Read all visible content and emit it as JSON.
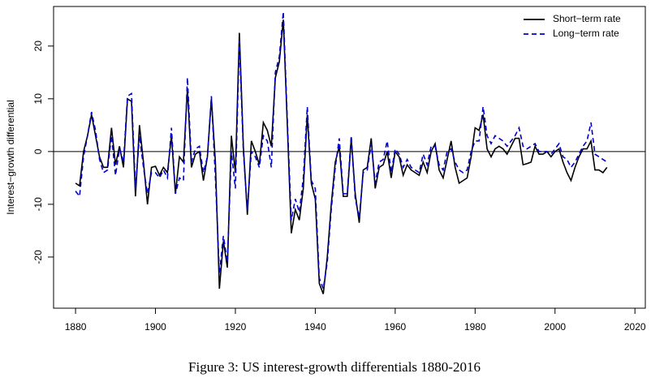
{
  "chart_data": {
    "type": "line",
    "caption": "Figure 3: US interest-growth differentials 1880-2016",
    "y_label": "Interest−growth differential",
    "x": [
      1880,
      1881,
      1882,
      1883,
      1884,
      1885,
      1886,
      1887,
      1888,
      1889,
      1890,
      1891,
      1892,
      1893,
      1894,
      1895,
      1896,
      1897,
      1898,
      1899,
      1900,
      1901,
      1902,
      1903,
      1904,
      1905,
      1906,
      1907,
      1908,
      1909,
      1910,
      1911,
      1912,
      1913,
      1914,
      1915,
      1916,
      1917,
      1918,
      1919,
      1920,
      1921,
      1922,
      1923,
      1924,
      1925,
      1926,
      1927,
      1928,
      1929,
      1930,
      1931,
      1932,
      1933,
      1934,
      1935,
      1936,
      1937,
      1938,
      1939,
      1940,
      1941,
      1942,
      1943,
      1944,
      1945,
      1946,
      1947,
      1948,
      1949,
      1950,
      1951,
      1952,
      1953,
      1954,
      1955,
      1956,
      1957,
      1958,
      1959,
      1960,
      1961,
      1962,
      1963,
      1964,
      1965,
      1966,
      1967,
      1968,
      1969,
      1970,
      1971,
      1972,
      1973,
      1974,
      1975,
      1976,
      1977,
      1978,
      1979,
      1980,
      1981,
      1982,
      1983,
      1984,
      1985,
      1986,
      1987,
      1988,
      1989,
      1990,
      1991,
      1992,
      1993,
      1994,
      1995,
      1996,
      1997,
      1998,
      1999,
      2000,
      2001,
      2002,
      2003,
      2004,
      2005,
      2006,
      2007,
      2008,
      2009,
      2010,
      2011,
      2012,
      2013
    ],
    "series": [
      {
        "name": "Short−term rate",
        "color": "#000000",
        "dash": "solid",
        "values": [
          -6,
          -6.5,
          0,
          3,
          7,
          3,
          -1,
          -3,
          -3,
          4.5,
          -2.5,
          1,
          -3,
          10,
          9.5,
          -8.5,
          5,
          -2,
          -10,
          -3,
          -2.8,
          -4.5,
          -3,
          -4,
          3,
          -8,
          -1,
          -2,
          12,
          -3,
          -0.5,
          0,
          -5.5,
          -1,
          10,
          -2,
          -26,
          -17,
          -22,
          3,
          -4,
          22.5,
          1,
          -12,
          2,
          0,
          -2.5,
          5.5,
          4,
          1,
          14,
          17,
          25,
          5,
          -15.5,
          -11,
          -13,
          -7,
          7,
          -6,
          -9,
          -25,
          -27,
          -20,
          -10,
          -2,
          1,
          -8.5,
          -8.5,
          2.5,
          -8,
          -13.5,
          -3.5,
          -3,
          2.5,
          -7,
          -3,
          -2.5,
          0,
          -5,
          0,
          -1,
          -4.5,
          -2.5,
          -3.5,
          -4,
          -4.5,
          -2,
          -4,
          0,
          1.5,
          -3.5,
          -5,
          -1.5,
          2,
          -3,
          -6,
          -5.5,
          -5,
          -1,
          4.5,
          4,
          7,
          0.5,
          -1,
          0.5,
          1,
          0.5,
          -0.5,
          1,
          2.5,
          2.5,
          -2.5,
          -2.3,
          -2,
          1,
          -0.5,
          -0.5,
          0,
          -1,
          0,
          0.5,
          -2,
          -4,
          -5.5,
          -3,
          -1,
          0.5,
          0.5,
          2,
          -3.5,
          -3.5,
          -4,
          -3
        ]
      },
      {
        "name": "Long−term rate",
        "color": "#0000cc",
        "dash": "dashed",
        "values": [
          -7.5,
          -8.5,
          -1,
          3,
          7.5,
          4,
          -1.5,
          -4,
          -3.5,
          3,
          -4.5,
          0.5,
          -2,
          10.5,
          11,
          -7,
          3,
          -3,
          -8,
          -4,
          -4,
          -5,
          -3.5,
          -5,
          4.5,
          -8,
          -5,
          -5.5,
          14,
          -2,
          0.5,
          1,
          -4,
          -1,
          10.5,
          -5,
          -23,
          -16,
          -21,
          0,
          -7,
          21,
          0,
          -11,
          0,
          -1,
          -3,
          3,
          2,
          -3,
          15,
          18,
          26.5,
          6,
          -13,
          -9,
          -11.5,
          -5,
          8.5,
          -5.5,
          -7,
          -24,
          -26,
          -21,
          -11,
          -3,
          2.5,
          -8,
          -8,
          3,
          -9,
          -12.5,
          -4,
          -3.5,
          1.5,
          -6,
          -2,
          -1.5,
          2,
          -4,
          0.5,
          -0.5,
          -3,
          -1.5,
          -3,
          -3.5,
          -4,
          -0.5,
          -2.5,
          1,
          1,
          -2.5,
          -3.5,
          0,
          0.5,
          -2,
          -3.5,
          -4,
          -3.5,
          0,
          2,
          2,
          8.5,
          3,
          1.5,
          3,
          2.5,
          2,
          1,
          2,
          3,
          4.5,
          1,
          0.5,
          1,
          1.5,
          0,
          0,
          0,
          -0.5,
          0.5,
          1.5,
          -1,
          -1.5,
          -3,
          -2,
          -0.5,
          1,
          2,
          5.5,
          -0.5,
          -1,
          -1.5,
          -2
        ]
      }
    ],
    "xlim": [
      1874.5,
      2022.6
    ],
    "xticks": [
      1880,
      1900,
      1920,
      1940,
      1960,
      1980,
      2000,
      2020
    ],
    "ylim": [
      -29.7,
      27.5
    ],
    "yticks": [
      -20,
      -10,
      0,
      10,
      20
    ],
    "hline": 0,
    "legend": "top-right"
  }
}
